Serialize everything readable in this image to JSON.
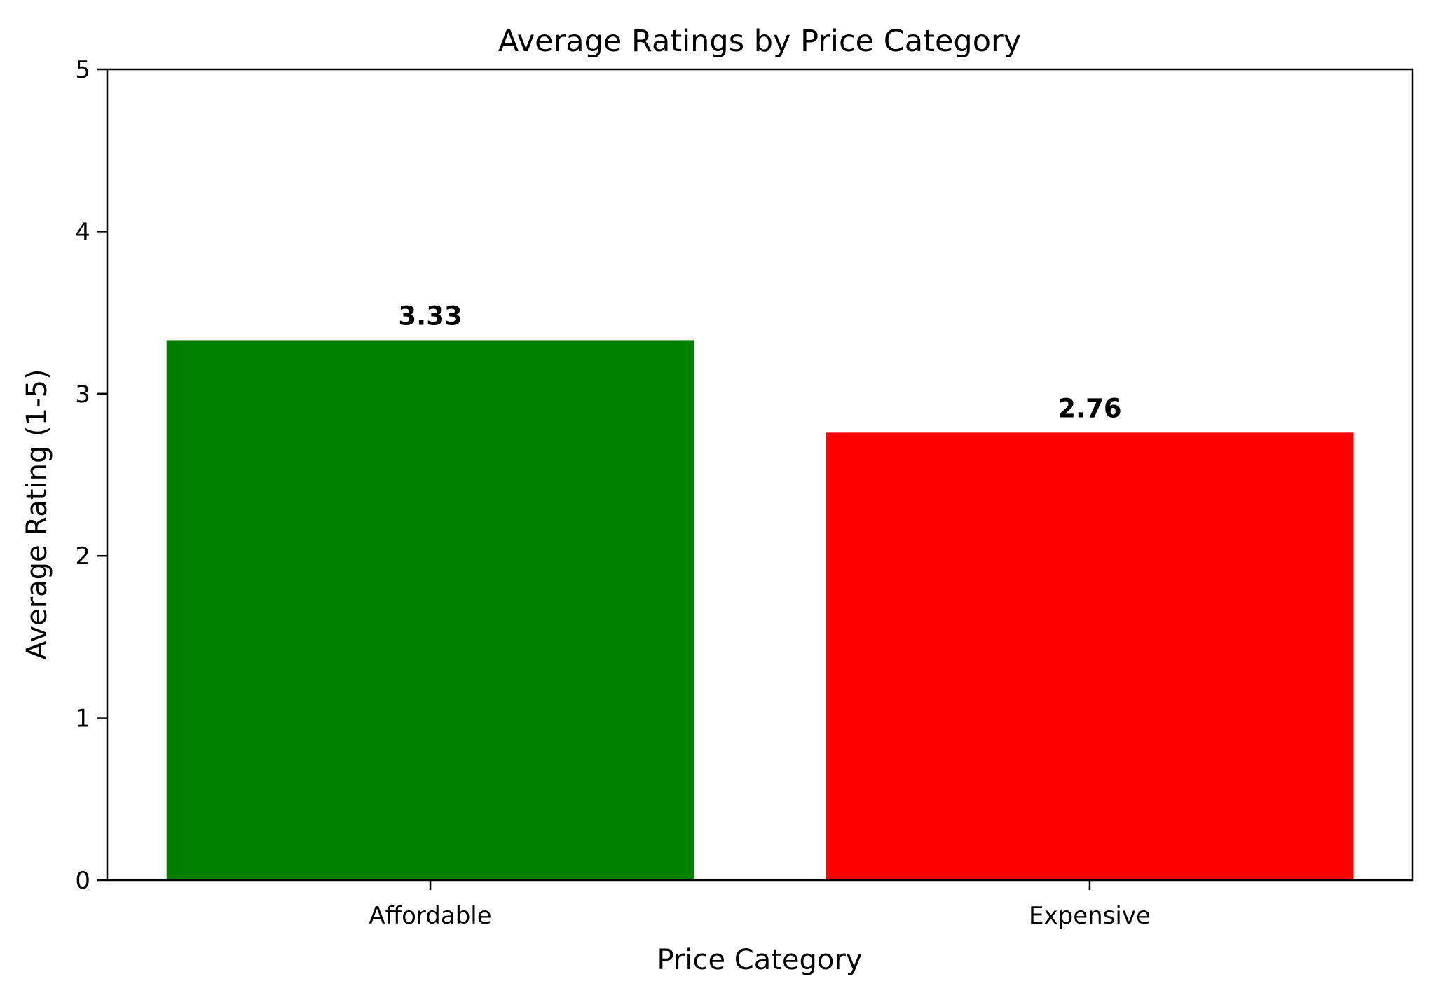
{
  "chart_data": {
    "type": "bar",
    "title": "Average Ratings by Price Category",
    "xlabel": "Price Category",
    "ylabel": "Average Rating (1-5)",
    "categories": [
      "Affordable",
      "Expensive"
    ],
    "values": [
      3.33,
      2.76
    ],
    "value_labels": [
      "3.33",
      "2.76"
    ],
    "colors": [
      "#008000",
      "#ff0000"
    ],
    "ylim": [
      0,
      5
    ],
    "yticks": [
      0,
      1,
      2,
      3,
      4,
      5
    ],
    "ytick_labels": [
      "0",
      "1",
      "2",
      "3",
      "4",
      "5"
    ],
    "grid": false,
    "legend": false
  }
}
